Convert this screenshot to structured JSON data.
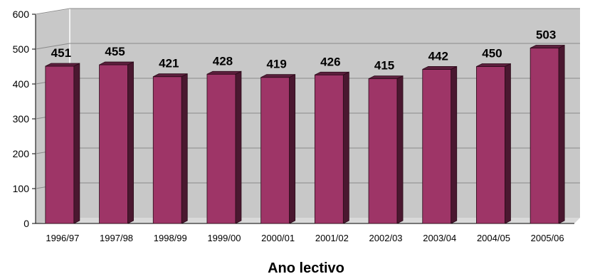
{
  "chart_data": {
    "type": "bar",
    "categories": [
      "1996/97",
      "1997/98",
      "1998/99",
      "1999/00",
      "2000/01",
      "2001/02",
      "2002/03",
      "2003/04",
      "2004/05",
      "2005/06"
    ],
    "values": [
      451,
      455,
      421,
      428,
      419,
      426,
      415,
      442,
      450,
      503
    ],
    "title": "",
    "xlabel": "Ano lectivo",
    "ylabel": "",
    "ylim": [
      0,
      600
    ],
    "yticks": [
      0,
      100,
      200,
      300,
      400,
      500,
      600
    ],
    "grid": true,
    "legend": "none",
    "style": "3d-column",
    "colors": {
      "bar_front": "#9e3567",
      "bar_side": "#4a1830",
      "bar_top": "#5c1f3d",
      "plot_wall": "#c8c8c8",
      "plot_floor": "#d9d9d9",
      "grid": "#8a8a8a"
    }
  }
}
